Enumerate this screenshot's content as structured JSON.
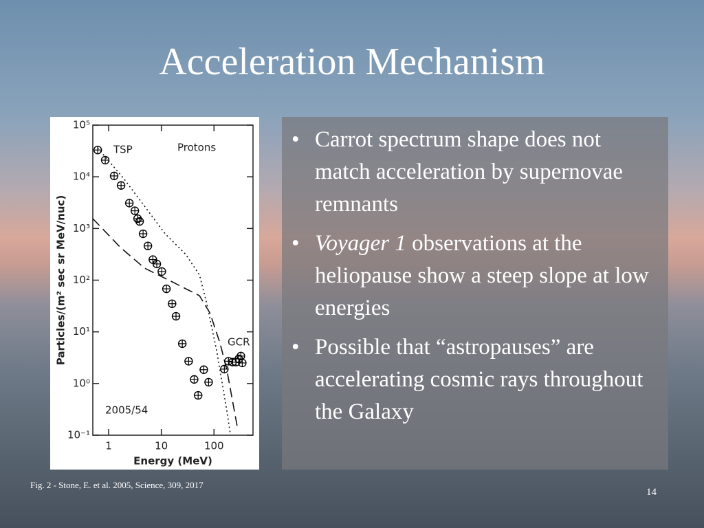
{
  "title": "Acceleration Mechanism",
  "figure": {
    "type": "scatter",
    "x_label": "Energy (MeV)",
    "y_label": "Particles/(m² sec sr MeV/nuc)",
    "xscale": "log",
    "yscale": "log",
    "xlim": [
      0.5,
      550
    ],
    "ylim": [
      0.1,
      100000
    ],
    "xticks": [
      1,
      10,
      100
    ],
    "yticks": [
      {
        "value": 0.1,
        "label": "10⁻¹"
      },
      {
        "value": 1,
        "label": "10⁰"
      },
      {
        "value": 10,
        "label": "10¹"
      },
      {
        "value": 100,
        "label": "10²"
      },
      {
        "value": 1000,
        "label": "10³"
      },
      {
        "value": 10000,
        "label": "10⁴"
      },
      {
        "value": 100000,
        "label": "10⁵"
      }
    ],
    "annotations": [
      "Protons",
      "2005/54"
    ],
    "series": [
      {
        "name": "TSP",
        "color": "#000000",
        "x": [
          0.62,
          0.86,
          1.27,
          1.72,
          2.47,
          3.14,
          3.54,
          3.87,
          4.5,
          5.56,
          6.9,
          8.2,
          10.2,
          12.5,
          16,
          19,
          25,
          33,
          42,
          50,
          64,
          79
        ],
        "values": [
          33000,
          21000,
          10400,
          6800,
          3100,
          2200,
          1550,
          1370,
          790,
          460,
          250,
          206,
          147,
          68,
          35,
          20,
          5.9,
          2.7,
          1.2,
          0.59,
          1.85,
          1.06
        ]
      },
      {
        "name": "GCR",
        "color": "#000000",
        "x": [
          157,
          188,
          225,
          262,
          295,
          324,
          344
        ],
        "values": [
          1.9,
          2.7,
          2.6,
          2.6,
          3.0,
          3.4,
          2.5
        ]
      }
    ],
    "curves": [
      {
        "style": "dotted",
        "x": [
          0.62,
          1.94,
          4.8,
          11.8,
          29,
          53,
          72,
          112,
          177,
          206
        ],
        "values": [
          36000,
          9200,
          2700,
          790,
          316,
          126,
          37,
          4.4,
          0.28,
          0.1
        ]
      },
      {
        "style": "dashed",
        "x": [
          0.5,
          1.67,
          4.8,
          16,
          53,
          84,
          131,
          177,
          275
        ],
        "values": [
          1550,
          430,
          171,
          93,
          50,
          23,
          5.9,
          1.74,
          0.15
        ]
      }
    ]
  },
  "bullets": [
    {
      "text": "Carrot spectrum shape does not match acceleration by supernovae remnants"
    },
    {
      "italic": "Voyager 1",
      "text": "observations at the heliopause show a steep slope at low energies"
    },
    {
      "text": "Possible that “astropauses” are accelerating cosmic rays throughout the Galaxy"
    }
  ],
  "caption": "Fig. 2 - Stone, E. et al. 2005, Science, 309, 2017",
  "slide_number": "14"
}
